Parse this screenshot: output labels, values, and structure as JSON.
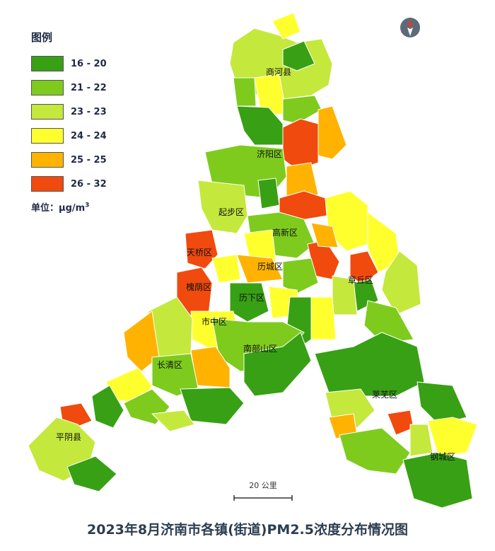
{
  "legend": {
    "title": "图例",
    "items": [
      {
        "label": "16 - 20",
        "color": "#38a015"
      },
      {
        "label": "21 - 22",
        "color": "#7ecb1e"
      },
      {
        "label": "23 - 23",
        "color": "#c4e83c"
      },
      {
        "label": "24 - 24",
        "color": "#ffff2e"
      },
      {
        "label": "25 - 25",
        "color": "#ffb300"
      },
      {
        "label": "26 - 32",
        "color": "#f04a0e"
      }
    ],
    "unit_prefix": "单位：μg/m",
    "unit_sup": "3"
  },
  "districts": {
    "shanghe": "商河县",
    "jiyang": "济阳区",
    "qibu": "起步区",
    "gaoxin": "高新区",
    "tianqiao": "天桥区",
    "licheng": "历城区",
    "zhangqiu": "章丘区",
    "huaiyin": "槐荫区",
    "lixia": "历下区",
    "shizhong": "市中区",
    "nanbushan": "南部山区",
    "changqing": "长清区",
    "laiwu": "莱芜区",
    "pingyin": "平阴县",
    "gangcheng": "钢城区"
  },
  "scale": {
    "label": "20 公里"
  },
  "compass": {
    "icon": "north-arrow-icon"
  },
  "title": "2023年8月济南市各镇(街道)PM2.5浓度分布情况图"
}
